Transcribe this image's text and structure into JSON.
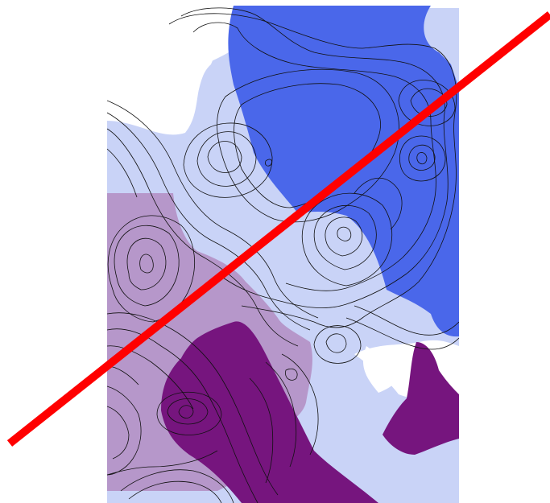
{
  "map": {
    "type": "contour-map",
    "layers": {
      "light_blue_region": {
        "color": "#c9d3f7"
      },
      "blue_region": {
        "color": "#4a67ea"
      },
      "lilac_region": {
        "color": "#b594c7"
      },
      "purple_region": {
        "color": "#76157e"
      },
      "contour_lines": {
        "color": "#111111"
      },
      "transect_line": {
        "color": "#ff0000"
      }
    }
  }
}
